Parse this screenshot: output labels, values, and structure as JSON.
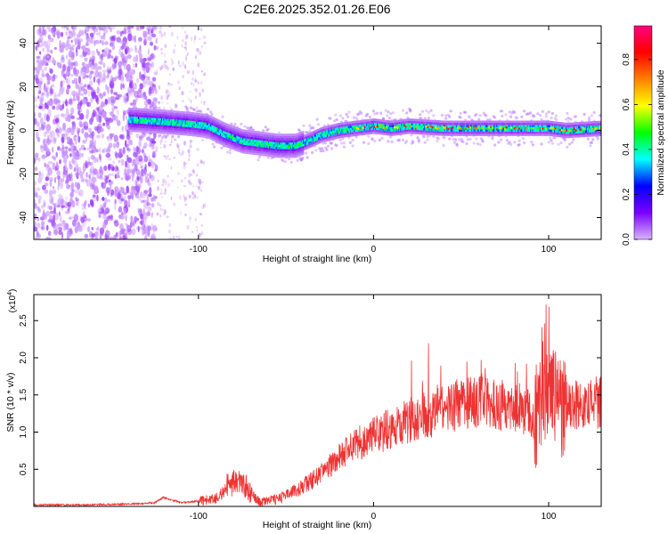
{
  "title": "C2E6.2025.352.01.26.E06",
  "chart_data": [
    {
      "type": "heatmap",
      "title": "C2E6.2025.352.01.26.E06",
      "xlabel": "Height of straight line (km)",
      "ylabel": "Frequency (Hz)",
      "xlim": [
        -194,
        130
      ],
      "ylim": [
        -50,
        48
      ],
      "x_ticks": [
        "-100",
        "0",
        "100"
      ],
      "y_ticks": [
        "40",
        "20",
        "0",
        "-20",
        "-40"
      ],
      "grid": false,
      "colorbar": {
        "label": "Normalized spectral amplitude",
        "range": [
          0,
          0.95
        ],
        "ticks": [
          "0.0",
          "0.2",
          "0.4",
          "0.6",
          "0.8"
        ],
        "colors": [
          "#d9b3ff",
          "#7a00ff",
          "#0000ff",
          "#00ffff",
          "#00ff00",
          "#ffff00",
          "#ff8000",
          "#ff0000",
          "#ff0080"
        ]
      },
      "ridge": {
        "x": [
          -140,
          -120,
          -105,
          -95,
          -85,
          -75,
          -65,
          -55,
          -45,
          -38,
          -30,
          -20,
          -10,
          0,
          10,
          20,
          40,
          60,
          80,
          100,
          110,
          130
        ],
        "y": [
          5,
          4,
          3,
          2,
          -2,
          -5,
          -6,
          -7,
          -7,
          -5,
          -2,
          0,
          1,
          2,
          1,
          2,
          1,
          1,
          1,
          1,
          0,
          1
        ]
      }
    },
    {
      "type": "line",
      "xlabel": "Height of straight line (km)",
      "ylabel": "SNR (10 * v/v)",
      "y_multiplier": "(x10",
      "y_multiplier_exp": "4",
      "y_multiplier_close": ")",
      "xlim": [
        -194,
        130
      ],
      "ylim": [
        0,
        2.85
      ],
      "x_ticks": [
        "-100",
        "0",
        "100"
      ],
      "y_ticks": [
        "0.5",
        "1.0",
        "1.5",
        "2.0",
        "2.5"
      ],
      "grid": false,
      "color": "#ee3333",
      "x": [
        -194,
        -170,
        -140,
        -125,
        -120,
        -110,
        -100,
        -90,
        -82,
        -78,
        -72,
        -65,
        -55,
        -45,
        -35,
        -25,
        -15,
        -5,
        5,
        15,
        25,
        35,
        45,
        55,
        65,
        75,
        85,
        92,
        95,
        98,
        100,
        103,
        106,
        110,
        120,
        130
      ],
      "y": [
        0.02,
        0.02,
        0.03,
        0.05,
        0.12,
        0.05,
        0.07,
        0.1,
        0.3,
        0.35,
        0.25,
        0.05,
        0.1,
        0.2,
        0.35,
        0.55,
        0.75,
        0.9,
        1.0,
        1.1,
        1.2,
        1.25,
        1.35,
        1.4,
        1.4,
        1.35,
        1.3,
        1.2,
        1.3,
        1.6,
        1.4,
        1.5,
        1.3,
        1.35,
        1.4,
        1.4
      ]
    }
  ]
}
